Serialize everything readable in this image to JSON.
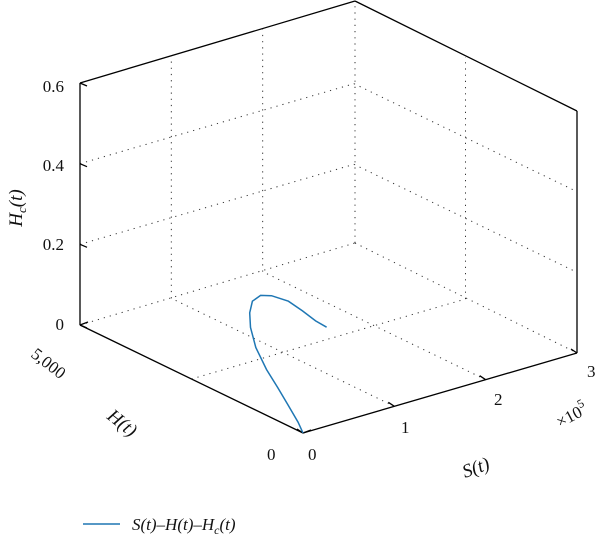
{
  "chart_data": {
    "type": "line3d",
    "xlabel": "S(t)",
    "ylabel": "H(t)",
    "zlabel": "H_c(t)",
    "x_multiplier": "×10^5",
    "xlim": [
      0,
      3
    ],
    "ylim": [
      0,
      5000
    ],
    "zlim": [
      0,
      0.6
    ],
    "x_ticks": [
      "0",
      "1",
      "2",
      "3"
    ],
    "y_ticks": [
      "0",
      "5,000"
    ],
    "z_ticks": [
      "0",
      "0.2",
      "0.4",
      "0.6"
    ],
    "grid": true,
    "legend_position": "bottom-left",
    "series": [
      {
        "name": "S(t)–H(t)–H_c(t)",
        "color": "#1f77b4",
        "points": [
          {
            "x": 0.0,
            "y": 0,
            "z": 0.0
          },
          {
            "x": 0.005,
            "y": 120,
            "z": 0.02
          },
          {
            "x": 0.01,
            "y": 360,
            "z": 0.05
          },
          {
            "x": 0.015,
            "y": 600,
            "z": 0.08
          },
          {
            "x": 0.02,
            "y": 860,
            "z": 0.11
          },
          {
            "x": 0.03,
            "y": 1120,
            "z": 0.15
          },
          {
            "x": 0.05,
            "y": 1280,
            "z": 0.19
          },
          {
            "x": 0.08,
            "y": 1360,
            "z": 0.22
          },
          {
            "x": 0.12,
            "y": 1380,
            "z": 0.245
          },
          {
            "x": 0.2,
            "y": 1360,
            "z": 0.255
          },
          {
            "x": 0.3,
            "y": 1320,
            "z": 0.25
          },
          {
            "x": 0.45,
            "y": 1250,
            "z": 0.23
          },
          {
            "x": 0.58,
            "y": 1200,
            "z": 0.2
          },
          {
            "x": 0.7,
            "y": 1150,
            "z": 0.17
          },
          {
            "x": 0.8,
            "y": 1110,
            "z": 0.15
          }
        ]
      }
    ]
  }
}
